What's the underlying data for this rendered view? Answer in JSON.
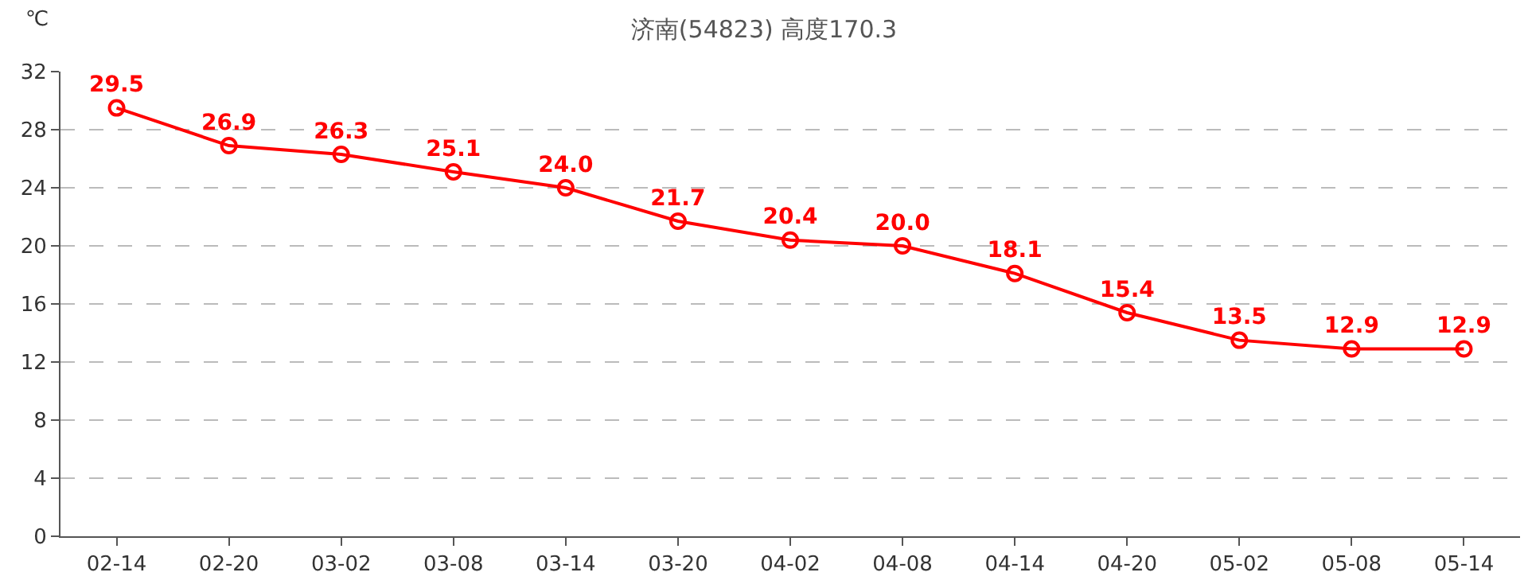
{
  "chart_data": {
    "type": "line",
    "title": "济南(54823) 高度170.3",
    "ylabel": "℃",
    "categories": [
      "02-14",
      "02-20",
      "03-02",
      "03-08",
      "03-14",
      "03-20",
      "04-02",
      "04-08",
      "04-14",
      "04-20",
      "05-02",
      "05-08",
      "05-14"
    ],
    "series": [
      {
        "color": "#ff0000",
        "values": [
          29.5,
          26.9,
          26.3,
          25.1,
          24.0,
          21.7,
          20.4,
          20.0,
          18.1,
          15.4,
          13.5,
          12.9,
          12.9
        ],
        "value_labels": [
          "29.5",
          "26.9",
          "26.3",
          "25.1",
          "24.0",
          "21.7",
          "20.4",
          "20.0",
          "18.1",
          "15.4",
          "13.5",
          "12.9",
          "12.9"
        ]
      }
    ],
    "ylim": [
      0,
      32
    ],
    "yticks": [
      0,
      4,
      8,
      12,
      16,
      20,
      24,
      28,
      32
    ],
    "grid": "y",
    "marker": "circle",
    "line_style": "solid"
  }
}
